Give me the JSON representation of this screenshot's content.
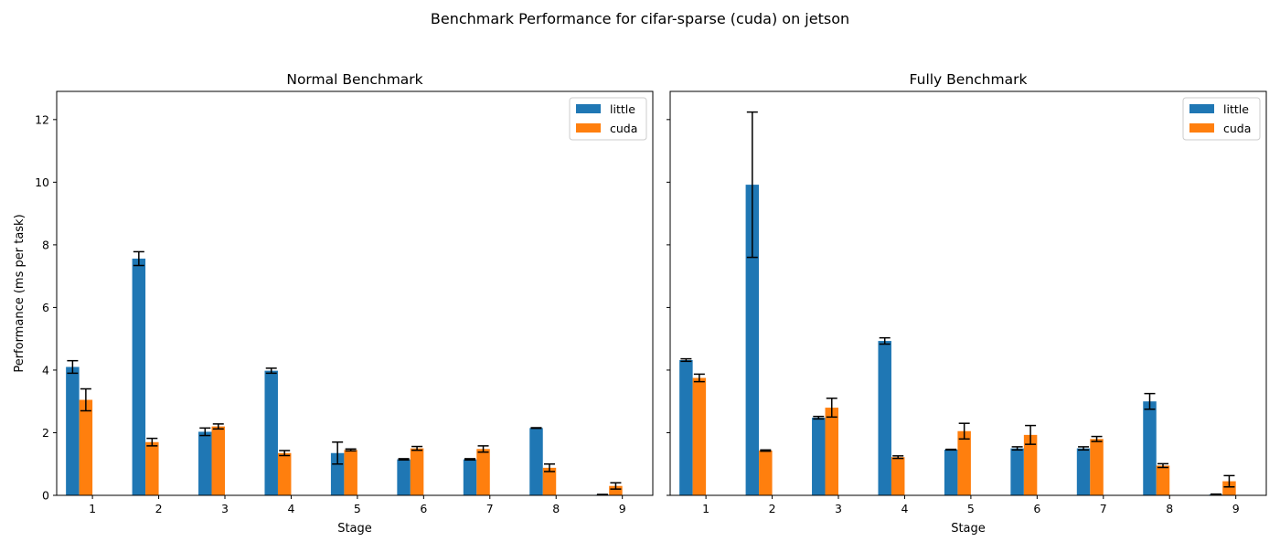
{
  "suptitle": "Benchmark Performance for cifar-sparse (cuda) on jetson",
  "chart_data": [
    {
      "type": "bar",
      "title": "Normal Benchmark",
      "xlabel": "Stage",
      "ylabel": "Performance (ms per task)",
      "ylim": [
        0,
        12.9
      ],
      "yticks": [
        0,
        2,
        4,
        6,
        8,
        10,
        12
      ],
      "categories": [
        "1",
        "2",
        "3",
        "4",
        "5",
        "6",
        "7",
        "8",
        "9"
      ],
      "legend_position": "top-right",
      "grid": false,
      "series": [
        {
          "name": "little",
          "color": "#1f77b4",
          "values": [
            4.1,
            7.56,
            2.03,
            3.98,
            1.35,
            1.15,
            1.15,
            2.15,
            0.02
          ],
          "errors": [
            0.2,
            0.22,
            0.12,
            0.08,
            0.35,
            0.02,
            0.02,
            0.01,
            0.01
          ]
        },
        {
          "name": "cuda",
          "color": "#ff7f0e",
          "values": [
            3.05,
            1.7,
            2.2,
            1.35,
            1.45,
            1.5,
            1.48,
            0.88,
            0.3
          ],
          "errors": [
            0.35,
            0.12,
            0.08,
            0.08,
            0.03,
            0.06,
            0.1,
            0.12,
            0.1
          ]
        }
      ]
    },
    {
      "type": "bar",
      "title": "Fully Benchmark",
      "xlabel": "Stage",
      "ylabel": "",
      "ylim": [
        0,
        12.9
      ],
      "yticks": [
        0,
        2,
        4,
        6,
        8,
        10,
        12
      ],
      "categories": [
        "1",
        "2",
        "3",
        "4",
        "5",
        "6",
        "7",
        "8",
        "9"
      ],
      "legend_position": "top-right",
      "grid": false,
      "series": [
        {
          "name": "little",
          "color": "#1f77b4",
          "values": [
            4.32,
            9.92,
            2.48,
            4.93,
            1.46,
            1.5,
            1.5,
            3.0,
            0.03
          ],
          "errors": [
            0.04,
            2.32,
            0.04,
            0.1,
            0.01,
            0.05,
            0.05,
            0.25,
            0.01
          ]
        },
        {
          "name": "cuda",
          "color": "#ff7f0e",
          "values": [
            3.75,
            1.43,
            2.8,
            1.22,
            2.05,
            1.93,
            1.8,
            0.95,
            0.45
          ],
          "errors": [
            0.12,
            0.02,
            0.3,
            0.04,
            0.25,
            0.3,
            0.08,
            0.06,
            0.18
          ]
        }
      ]
    }
  ]
}
